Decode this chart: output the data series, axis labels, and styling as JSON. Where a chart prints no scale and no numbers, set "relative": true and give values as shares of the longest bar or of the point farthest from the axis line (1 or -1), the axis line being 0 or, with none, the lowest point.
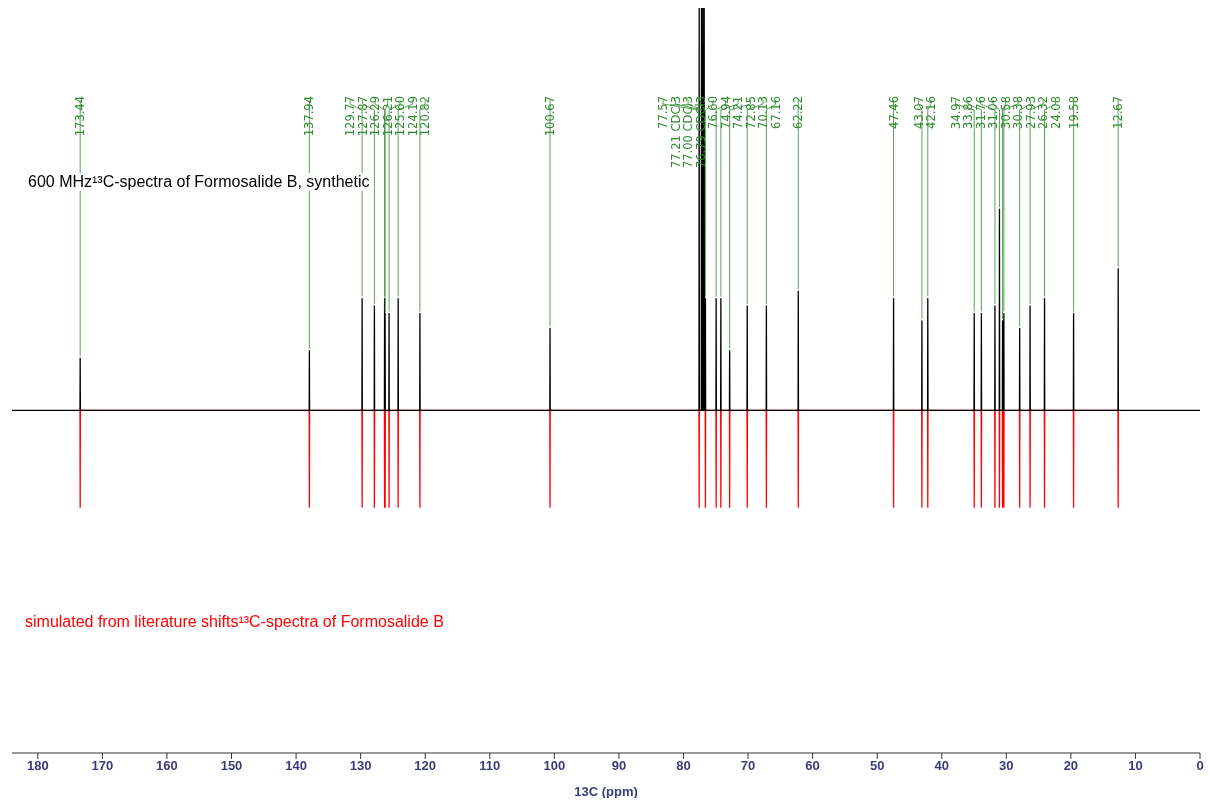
{
  "chart_data": {
    "type": "line",
    "relative": true,
    "xlabel": "13C (ppm)",
    "xlim": [
      184,
      0
    ],
    "xticks": [
      180,
      170,
      160,
      150,
      140,
      130,
      120,
      110,
      100,
      90,
      80,
      70,
      60,
      50,
      40,
      30,
      20,
      10,
      0
    ],
    "series": [
      {
        "name": "600 MHz¹³C-spectra of Formosalide B, synthetic",
        "color": "#000000",
        "x": [
          184,
          173.47,
          173.44,
          173.41,
          137.97,
          137.94,
          137.91,
          129.8,
          129.77,
          129.74,
          127.9,
          127.87,
          127.84,
          126.32,
          126.29,
          126.26,
          126.24,
          126.21,
          126.18,
          125.63,
          125.6,
          125.57,
          124.22,
          124.19,
          124.16,
          120.85,
          120.82,
          120.79,
          100.7,
          100.67,
          100.64,
          77.6,
          77.57,
          77.54,
          77.24,
          77.21,
          77.18,
          77.03,
          77.0,
          76.97,
          76.82,
          76.79,
          76.76,
          76.63,
          76.6,
          76.57,
          74.97,
          74.94,
          74.91,
          74.24,
          74.21,
          74.18,
          72.88,
          72.85,
          72.82,
          70.16,
          70.13,
          70.1,
          67.19,
          67.16,
          67.13,
          62.25,
          62.22,
          62.19,
          47.49,
          47.46,
          47.43,
          43.1,
          43.07,
          43.04,
          42.19,
          42.16,
          42.13,
          35.0,
          34.97,
          34.94,
          33.89,
          33.86,
          33.83,
          31.79,
          31.76,
          31.73,
          31.09,
          31.06,
          31.03,
          30.61,
          30.58,
          30.55,
          30.41,
          30.38,
          30.35,
          27.96,
          27.93,
          27.9,
          26.35,
          26.32,
          26.29,
          24.11,
          24.08,
          24.05,
          19.61,
          19.58,
          19.55,
          12.7,
          12.67,
          12.64,
          0
        ],
        "values": [
          0.46,
          0.46,
          0.53,
          0.46,
          0.46,
          0.54,
          0.46,
          0.46,
          0.61,
          0.46,
          0.46,
          0.6,
          0.46,
          0.46,
          0.61,
          0.46,
          0.46,
          0.59,
          0.46,
          0.46,
          0.59,
          0.46,
          0.46,
          0.61,
          0.46,
          0.46,
          0.59,
          0.46,
          0.46,
          0.57,
          0.46,
          0.46,
          1,
          0.46,
          0.46,
          1,
          0.46,
          0.46,
          1,
          0.46,
          0.46,
          1,
          0.46,
          0.46,
          0.61,
          0.46,
          0.46,
          0.61,
          0.46,
          0.46,
          0.61,
          0.46,
          0.46,
          0.54,
          0.46,
          0.46,
          0.6,
          0.46,
          0.46,
          0.6,
          0.46,
          0.46,
          0.62,
          0.46,
          0.46,
          0.61,
          0.46,
          0.46,
          0.58,
          0.46,
          0.46,
          0.61,
          0.46,
          0.46,
          0.59,
          0.46,
          0.46,
          0.59,
          0.46,
          0.46,
          0.6,
          0.46,
          0.46,
          0.73,
          0.46,
          0.46,
          0.58,
          0.46,
          0.46,
          0.59,
          0.46,
          0.46,
          0.57,
          0.46,
          0.46,
          0.6,
          0.46,
          0.46,
          0.61,
          0.46,
          0.46,
          0.59,
          0.46,
          0.46,
          0.65,
          0.46,
          0.46
        ]
      },
      {
        "name": "simulated from literature shifts¹³C-spectra of Formosalide B",
        "color": "#ff0000",
        "x": [
          173.47,
          173.44,
          173.41,
          137.97,
          137.94,
          137.91,
          129.8,
          129.77,
          129.74,
          127.9,
          127.87,
          127.84,
          126.32,
          126.29,
          126.26,
          126.24,
          126.21,
          126.18,
          125.63,
          125.6,
          125.57,
          124.22,
          124.19,
          124.16,
          120.85,
          120.82,
          120.79,
          100.7,
          100.67,
          100.64,
          77.6,
          77.57,
          77.54,
          76.63,
          76.6,
          76.57,
          74.97,
          74.94,
          74.91,
          74.24,
          74.21,
          74.18,
          72.88,
          72.85,
          72.82,
          70.16,
          70.13,
          70.1,
          67.19,
          67.16,
          67.13,
          62.25,
          62.22,
          62.19,
          47.49,
          47.46,
          47.43,
          43.1,
          43.07,
          43.04,
          42.19,
          42.16,
          42.13,
          35.0,
          34.97,
          34.94,
          33.89,
          33.86,
          33.83,
          31.79,
          31.76,
          31.73,
          31.09,
          31.06,
          31.03,
          30.61,
          30.58,
          30.55,
          30.41,
          30.38,
          30.35,
          27.96,
          27.93,
          27.9,
          26.35,
          26.32,
          26.29,
          24.11,
          24.08,
          24.05,
          19.61,
          19.58,
          19.55,
          12.7,
          12.67,
          12.64
        ],
        "values": [
          0.46,
          0.33,
          0.46,
          0.46,
          0.33,
          0.46,
          0.46,
          0.33,
          0.46,
          0.46,
          0.33,
          0.46,
          0.46,
          0.33,
          0.46,
          0.46,
          0.33,
          0.46,
          0.46,
          0.33,
          0.46,
          0.46,
          0.33,
          0.46,
          0.46,
          0.33,
          0.46,
          0.46,
          0.33,
          0.46,
          0.46,
          0.33,
          0.46,
          0.46,
          0.33,
          0.46,
          0.46,
          0.33,
          0.46,
          0.46,
          0.33,
          0.46,
          0.46,
          0.33,
          0.46,
          0.46,
          0.33,
          0.46,
          0.46,
          0.33,
          0.46,
          0.46,
          0.33,
          0.46,
          0.46,
          0.33,
          0.46,
          0.46,
          0.33,
          0.46,
          0.46,
          0.33,
          0.46,
          0.46,
          0.33,
          0.46,
          0.46,
          0.33,
          0.46,
          0.46,
          0.33,
          0.46,
          0.46,
          0.33,
          0.46,
          0.46,
          0.33,
          0.46,
          0.46,
          0.33,
          0.46,
          0.46,
          0.33,
          0.46,
          0.46,
          0.33,
          0.46,
          0.46,
          0.33,
          0.46,
          0.46,
          0.33,
          0.46,
          0.46,
          0.33,
          0.46
        ]
      }
    ],
    "annotations": [
      {
        "text": "173.44",
        "x": 173.44,
        "y": 0.53
      },
      {
        "text": "137.94",
        "x": 137.94,
        "y": 0.54
      },
      {
        "text": "129.77",
        "x": 129.77,
        "y": 0.61
      },
      {
        "text": "127.87",
        "x": 127.87,
        "y": 0.6
      },
      {
        "text": "126.29",
        "x": 126.29,
        "y": 0.61
      },
      {
        "text": "126.21",
        "x": 126.21,
        "y": 0.59
      },
      {
        "text": "125.60",
        "x": 125.6,
        "y": 0.59
      },
      {
        "text": "124.19",
        "x": 124.19,
        "y": 0.61
      },
      {
        "text": "120.82",
        "x": 120.82,
        "y": 0.59
      },
      {
        "text": "100.67",
        "x": 100.67,
        "y": 0.57
      },
      {
        "text": "77.57",
        "x": 77.57,
        "y": 0.86
      },
      {
        "text": "77.21 CDCl3",
        "x": 77.21,
        "y": 0.86
      },
      {
        "text": "77.00 CDCl3",
        "x": 77.0,
        "y": 0.86
      },
      {
        "text": "76.79 CDCl3",
        "x": 76.79,
        "y": 0.86
      },
      {
        "text": "76.60",
        "x": 76.6,
        "y": 0.61
      },
      {
        "text": "74.94",
        "x": 74.94,
        "y": 0.61
      },
      {
        "text": "74.21",
        "x": 74.21,
        "y": 0.61
      },
      {
        "text": "72.85",
        "x": 72.85,
        "y": 0.54
      },
      {
        "text": "70.13",
        "x": 70.13,
        "y": 0.6
      },
      {
        "text": "67.16",
        "x": 67.16,
        "y": 0.6
      },
      {
        "text": "62.22",
        "x": 62.22,
        "y": 0.62
      },
      {
        "text": "47.46",
        "x": 47.46,
        "y": 0.61
      },
      {
        "text": "43.07",
        "x": 43.07,
        "y": 0.58
      },
      {
        "text": "42.16",
        "x": 42.16,
        "y": 0.61
      },
      {
        "text": "34.97",
        "x": 34.97,
        "y": 0.59
      },
      {
        "text": "33.86",
        "x": 33.86,
        "y": 0.59
      },
      {
        "text": "31.76",
        "x": 31.76,
        "y": 0.6
      },
      {
        "text": "31.06",
        "x": 31.06,
        "y": 0.73
      },
      {
        "text": "30.58",
        "x": 30.58,
        "y": 0.58
      },
      {
        "text": "30.38",
        "x": 30.38,
        "y": 0.59
      },
      {
        "text": "27.93",
        "x": 27.93,
        "y": 0.57
      },
      {
        "text": "26.32",
        "x": 26.32,
        "y": 0.6
      },
      {
        "text": "24.08",
        "x": 24.08,
        "y": 0.61
      },
      {
        "text": "19.58",
        "x": 19.58,
        "y": 0.59
      },
      {
        "text": "12.67",
        "x": 12.67,
        "y": 0.65
      }
    ]
  }
}
